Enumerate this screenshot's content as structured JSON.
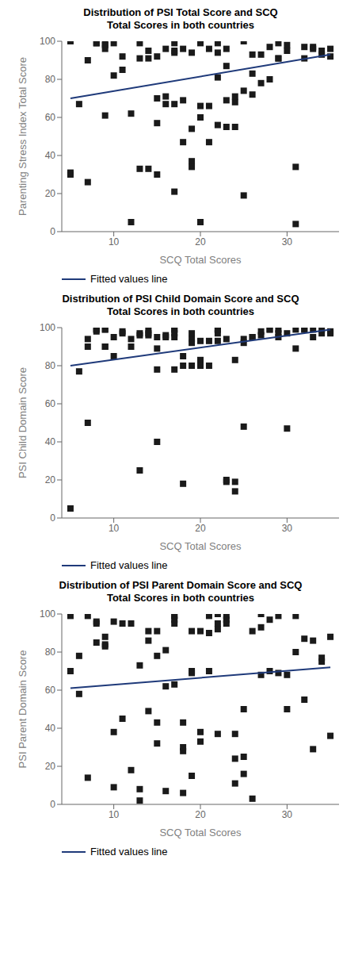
{
  "chart_data": [
    {
      "type": "scatter",
      "title": "Distribution of PSI Total Score and SCQ\nTotal Scores in both countries",
      "x_label": "SCQ Total Scores",
      "y_label": "Parenting Stress Index Total Score",
      "xlim": [
        4,
        36
      ],
      "ylim": [
        0,
        100
      ],
      "xticks": [
        10,
        20,
        30
      ],
      "yticks": [
        0,
        20,
        40,
        60,
        80,
        100
      ],
      "grid": false,
      "legend": "bottom",
      "series": [
        {
          "type": "scatter",
          "color": "#1a1a1a",
          "marker": "square",
          "x": [
            5,
            5,
            5,
            6,
            7,
            7,
            8,
            8,
            9,
            9,
            9,
            9,
            10,
            10,
            11,
            11,
            12,
            12,
            13,
            13,
            13,
            14,
            14,
            14,
            15,
            15,
            15,
            15,
            16,
            16,
            16,
            17,
            17,
            17,
            17,
            17,
            18,
            18,
            18,
            19,
            19,
            19,
            19,
            20,
            20,
            20,
            20,
            21,
            21,
            21,
            22,
            22,
            22,
            22,
            23,
            23,
            23,
            23,
            24,
            24,
            24,
            25,
            25,
            25,
            26,
            26,
            26,
            27,
            27,
            28,
            28,
            29,
            29,
            29,
            30,
            30,
            31,
            31,
            32,
            32,
            33,
            33,
            34,
            34,
            35,
            35
          ],
          "values": [
            31,
            100,
            30,
            67,
            90,
            26,
            99,
            99,
            96,
            61,
            99,
            98,
            82,
            99,
            92,
            85,
            62,
            5,
            99,
            91,
            33,
            95,
            91,
            33,
            57,
            70,
            92,
            30,
            96,
            71,
            67,
            99,
            67,
            94,
            95,
            21,
            47,
            69,
            96,
            94,
            54,
            37,
            34,
            99,
            60,
            66,
            5,
            66,
            47,
            96,
            56,
            99,
            94,
            81,
            96,
            55,
            69,
            87,
            55,
            68,
            71,
            74,
            19,
            100,
            93,
            83,
            72,
            78,
            93,
            80,
            97,
            91,
            99,
            91,
            95,
            98,
            4,
            34,
            91,
            97,
            97,
            96,
            95,
            93,
            96,
            92
          ]
        },
        {
          "type": "line",
          "name": "Fitted values line",
          "color": "#1f3a7a",
          "line_style": "solid",
          "x": [
            5,
            35
          ],
          "values": [
            70,
            93
          ]
        }
      ]
    },
    {
      "type": "scatter",
      "title": "Distribution of PSI Child Domain Score and SCQ\nTotal Scores in both countries",
      "x_label": "SCQ Total Scores",
      "y_label": "PSI Child Domain Score",
      "xlim": [
        4,
        36
      ],
      "ylim": [
        0,
        100
      ],
      "xticks": [
        10,
        20,
        30
      ],
      "yticks": [
        0,
        20,
        40,
        60,
        80,
        100
      ],
      "grid": false,
      "legend": "bottom",
      "series": [
        {
          "type": "scatter",
          "color": "#1a1a1a",
          "marker": "square",
          "x": [
            5,
            6,
            7,
            7,
            7,
            8,
            8,
            8,
            9,
            9,
            9,
            9,
            10,
            10,
            11,
            11,
            12,
            12,
            13,
            13,
            13,
            14,
            14,
            14,
            15,
            15,
            15,
            15,
            16,
            16,
            17,
            17,
            17,
            17,
            17,
            18,
            18,
            18,
            19,
            19,
            19,
            19,
            20,
            20,
            20,
            21,
            21,
            22,
            22,
            22,
            22,
            23,
            23,
            23,
            24,
            24,
            24,
            25,
            25,
            25,
            26,
            26,
            27,
            27,
            28,
            28,
            29,
            29,
            29,
            30,
            30,
            31,
            31,
            32,
            32,
            33,
            33,
            34,
            34,
            35,
            35
          ],
          "values": [
            5,
            77,
            90,
            94,
            50,
            99,
            99,
            98,
            99,
            99,
            90,
            90,
            85,
            95,
            98,
            97,
            94,
            90,
            97,
            96,
            25,
            96,
            99,
            97,
            78,
            89,
            95,
            40,
            96,
            95,
            99,
            99,
            97,
            95,
            78,
            85,
            80,
            18,
            94,
            80,
            92,
            97,
            93,
            80,
            83,
            93,
            80,
            93,
            99,
            97,
            99,
            20,
            19,
            94,
            19,
            14,
            83,
            48,
            92,
            94,
            95,
            95,
            96,
            98,
            99,
            99,
            99,
            97,
            95,
            97,
            47,
            99,
            89,
            99,
            99,
            95,
            99,
            97,
            99,
            98,
            97
          ]
        },
        {
          "type": "line",
          "name": "Fitted values line",
          "color": "#1f3a7a",
          "line_style": "solid",
          "x": [
            5,
            35
          ],
          "values": [
            80,
            99
          ]
        }
      ]
    },
    {
      "type": "scatter",
      "title": "Distribution of PSI Parent Domain Score and SCQ\nTotal Scores in both countries",
      "x_label": "SCQ Total Scores",
      "y_label": "PSI Parent Domain Score",
      "xlim": [
        4,
        36
      ],
      "ylim": [
        0,
        100
      ],
      "xticks": [
        10,
        20,
        30
      ],
      "yticks": [
        0,
        20,
        40,
        60,
        80,
        100
      ],
      "grid": false,
      "legend": "bottom",
      "series": [
        {
          "type": "scatter",
          "color": "#1a1a1a",
          "marker": "square",
          "x": [
            5,
            5,
            6,
            6,
            7,
            7,
            8,
            8,
            8,
            9,
            9,
            9,
            10,
            10,
            10,
            11,
            11,
            12,
            12,
            13,
            13,
            13,
            14,
            14,
            14,
            15,
            15,
            15,
            15,
            16,
            16,
            16,
            17,
            17,
            17,
            17,
            17,
            18,
            18,
            18,
            18,
            19,
            19,
            19,
            19,
            20,
            20,
            20,
            21,
            21,
            21,
            22,
            22,
            22,
            22,
            23,
            23,
            23,
            24,
            24,
            24,
            25,
            25,
            25,
            26,
            26,
            27,
            27,
            27,
            28,
            28,
            29,
            29,
            30,
            30,
            31,
            31,
            32,
            32,
            33,
            33,
            34,
            34,
            35,
            35
          ],
          "values": [
            70,
            99,
            58,
            78,
            99,
            14,
            96,
            95,
            85,
            88,
            84,
            83,
            96,
            38,
            9,
            45,
            95,
            95,
            18,
            73,
            8,
            2,
            91,
            86,
            49,
            78,
            91,
            43,
            32,
            81,
            62,
            7,
            99,
            99,
            97,
            95,
            63,
            43,
            28,
            30,
            6,
            91,
            69,
            15,
            70,
            91,
            38,
            33,
            90,
            99,
            70,
            100,
            37,
            95,
            92,
            99,
            97,
            95,
            37,
            11,
            24,
            25,
            50,
            16,
            91,
            3,
            93,
            68,
            100,
            70,
            97,
            69,
            99,
            68,
            50,
            80,
            99,
            55,
            87,
            86,
            29,
            75,
            77,
            88,
            36
          ]
        },
        {
          "type": "line",
          "name": "Fitted values line",
          "color": "#1f3a7a",
          "line_style": "solid",
          "x": [
            5,
            35
          ],
          "values": [
            61,
            72
          ]
        }
      ]
    }
  ]
}
